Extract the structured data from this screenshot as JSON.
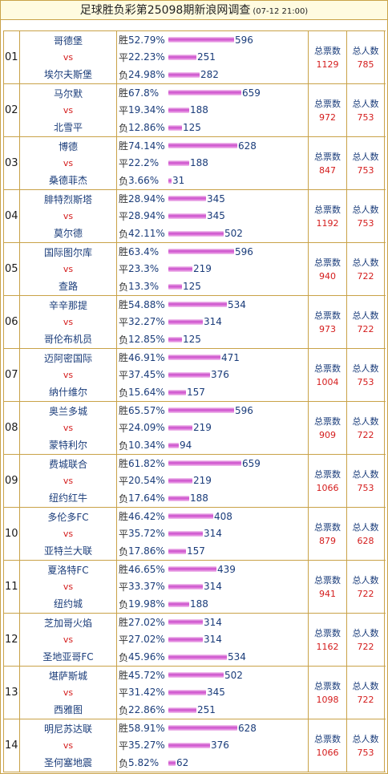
{
  "header": {
    "title": "足球胜负彩第25098期新浪网调查",
    "date": "(07-12 21:00)"
  },
  "labels": {
    "win": "胜",
    "draw": "平",
    "loss": "负",
    "vs": "vs",
    "total_votes": "总票数",
    "total_people": "总人数"
  },
  "matches": [
    {
      "no": "01",
      "home": "哥德堡",
      "away": "埃尔夫斯堡",
      "win_pct": "52.79%",
      "win": 596,
      "draw_pct": "22.23%",
      "draw": 251,
      "loss_pct": "24.98%",
      "loss": 282,
      "votes": 1129,
      "people": 785
    },
    {
      "no": "02",
      "home": "马尔默",
      "away": "北雪平",
      "win_pct": "67.8%",
      "win": 659,
      "draw_pct": "19.34%",
      "draw": 188,
      "loss_pct": "12.86%",
      "loss": 125,
      "votes": 972,
      "people": 753
    },
    {
      "no": "03",
      "home": "博德",
      "away": "桑德菲杰",
      "win_pct": "74.14%",
      "win": 628,
      "draw_pct": "22.2%",
      "draw": 188,
      "loss_pct": "3.66%",
      "loss": 31,
      "votes": 847,
      "people": 753
    },
    {
      "no": "04",
      "home": "腓特烈斯塔",
      "away": "莫尔德",
      "win_pct": "28.94%",
      "win": 345,
      "draw_pct": "28.94%",
      "draw": 345,
      "loss_pct": "42.11%",
      "loss": 502,
      "votes": 1192,
      "people": 753
    },
    {
      "no": "05",
      "home": "国际图尔库",
      "away": "查路",
      "win_pct": "63.4%",
      "win": 596,
      "draw_pct": "23.3%",
      "draw": 219,
      "loss_pct": "13.3%",
      "loss": 125,
      "votes": 940,
      "people": 722
    },
    {
      "no": "06",
      "home": "辛辛那提",
      "away": "哥伦布机员",
      "win_pct": "54.88%",
      "win": 534,
      "draw_pct": "32.27%",
      "draw": 314,
      "loss_pct": "12.85%",
      "loss": 125,
      "votes": 973,
      "people": 722
    },
    {
      "no": "07",
      "home": "迈阿密国际",
      "away": "纳什维尔",
      "win_pct": "46.91%",
      "win": 471,
      "draw_pct": "37.45%",
      "draw": 376,
      "loss_pct": "15.64%",
      "loss": 157,
      "votes": 1004,
      "people": 753
    },
    {
      "no": "08",
      "home": "奥兰多城",
      "away": "蒙特利尔",
      "win_pct": "65.57%",
      "win": 596,
      "draw_pct": "24.09%",
      "draw": 219,
      "loss_pct": "10.34%",
      "loss": 94,
      "votes": 909,
      "people": 722
    },
    {
      "no": "09",
      "home": "费城联合",
      "away": "纽约红牛",
      "win_pct": "61.82%",
      "win": 659,
      "draw_pct": "20.54%",
      "draw": 219,
      "loss_pct": "17.64%",
      "loss": 188,
      "votes": 1066,
      "people": 753
    },
    {
      "no": "10",
      "home": "多伦多FC",
      "away": "亚特兰大联",
      "win_pct": "46.42%",
      "win": 408,
      "draw_pct": "35.72%",
      "draw": 314,
      "loss_pct": "17.86%",
      "loss": 157,
      "votes": 879,
      "people": 628
    },
    {
      "no": "11",
      "home": "夏洛特FC",
      "away": "纽约城",
      "win_pct": "46.65%",
      "win": 439,
      "draw_pct": "33.37%",
      "draw": 314,
      "loss_pct": "19.98%",
      "loss": 188,
      "votes": 941,
      "people": 722
    },
    {
      "no": "12",
      "home": "芝加哥火焰",
      "away": "圣地亚哥FC",
      "win_pct": "27.02%",
      "win": 314,
      "draw_pct": "27.02%",
      "draw": 314,
      "loss_pct": "45.96%",
      "loss": 534,
      "votes": 1162,
      "people": 722
    },
    {
      "no": "13",
      "home": "堪萨斯城",
      "away": "西雅图",
      "win_pct": "45.72%",
      "win": 502,
      "draw_pct": "31.42%",
      "draw": 345,
      "loss_pct": "22.86%",
      "loss": 251,
      "votes": 1098,
      "people": 722
    },
    {
      "no": "14",
      "home": "明尼苏达联",
      "away": "圣何塞地震",
      "win_pct": "58.91%",
      "win": 628,
      "draw_pct": "35.27%",
      "draw": 376,
      "loss_pct": "5.82%",
      "loss": 62,
      "votes": 1066,
      "people": 753
    }
  ]
}
